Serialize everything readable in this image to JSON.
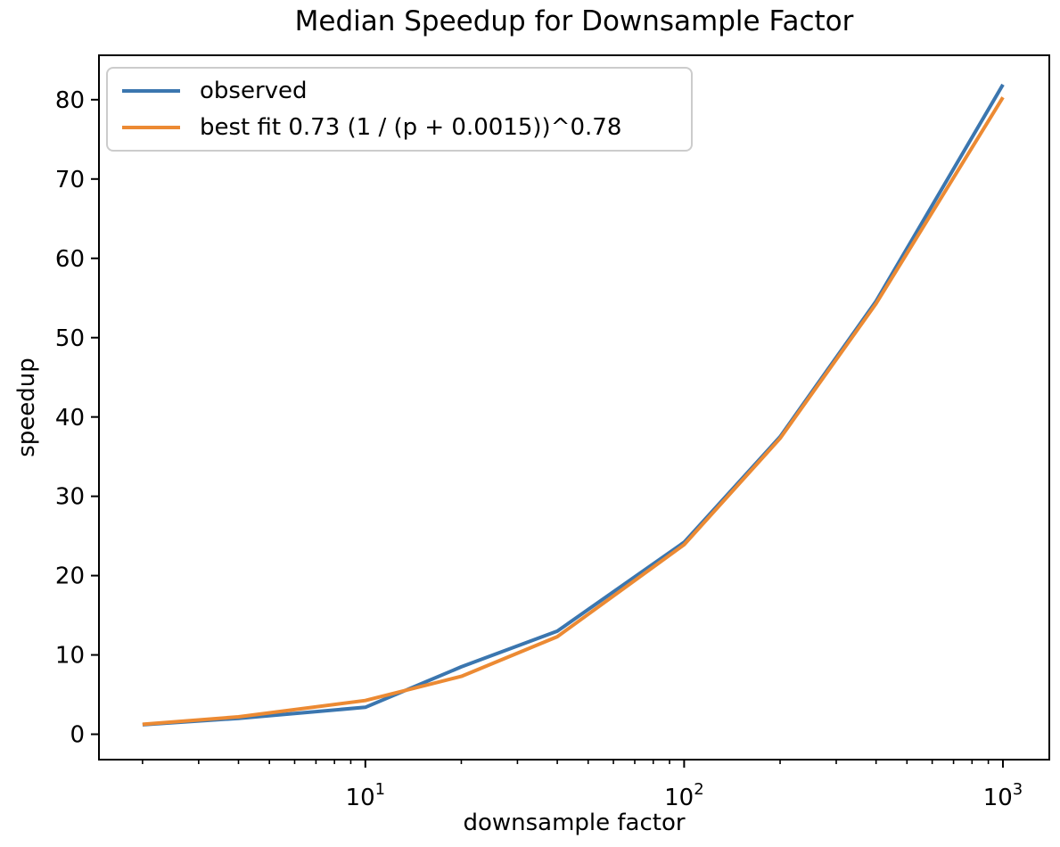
{
  "chart_data": {
    "type": "line",
    "title": "Median Speedup for Downsample Factor",
    "xlabel": "downsample factor",
    "ylabel": "speedup",
    "xscale": "log",
    "grid": false,
    "legend_position": "upper left",
    "background_color": "#ffffff",
    "axis_color": "#000000",
    "legend_border_color": "#cccccc",
    "xlim": [
      1.46,
      1398
    ],
    "ylim": [
      -3.2,
      85.6
    ],
    "x": [
      2,
      4,
      10,
      20,
      40,
      100,
      200,
      400,
      1000
    ],
    "series": [
      {
        "name": "observed",
        "color": "#3b76af",
        "values": [
          1.2,
          2.0,
          3.4,
          8.5,
          13.0,
          24.2,
          37.5,
          54.6,
          81.9
        ]
      },
      {
        "name": "best fit 0.73 (1 / (p + 0.0015))^0.78",
        "color": "#ec8a33",
        "values": [
          1.25,
          2.2,
          4.25,
          7.3,
          12.3,
          23.9,
          37.3,
          54.3,
          80.3
        ]
      }
    ],
    "yticks": [
      0,
      10,
      20,
      30,
      40,
      50,
      60,
      70,
      80
    ],
    "ytick_labels": [
      "0",
      "10",
      "20",
      "30",
      "40",
      "50",
      "60",
      "70",
      "80"
    ],
    "xticks_major": [
      {
        "value": 10,
        "base": "10",
        "exponent": "1"
      },
      {
        "value": 100,
        "base": "10",
        "exponent": "2"
      },
      {
        "value": 1000,
        "base": "10",
        "exponent": "3"
      }
    ],
    "xticks_minor": [
      2,
      3,
      4,
      5,
      6,
      7,
      8,
      9,
      20,
      30,
      40,
      50,
      60,
      70,
      80,
      90,
      200,
      300,
      400,
      500,
      600,
      700,
      800,
      900
    ]
  }
}
